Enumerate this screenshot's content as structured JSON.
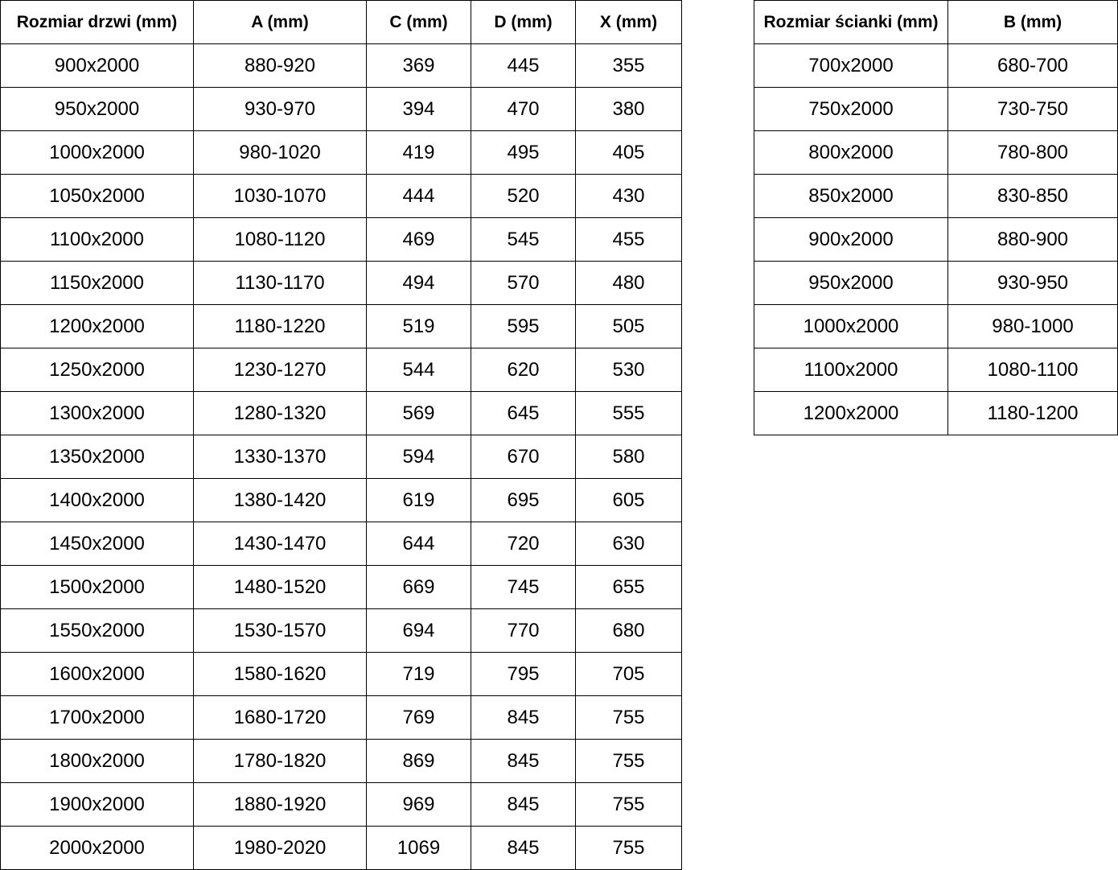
{
  "page": {
    "background": "#ffffff",
    "border_color": "#000000",
    "text_color": "#000000"
  },
  "door_table": {
    "headers": [
      "Rozmiar drzwi (mm)",
      "A (mm)",
      "C (mm)",
      "D (mm)",
      "X (mm)"
    ],
    "rows": [
      [
        "900x2000",
        "880-920",
        "369",
        "445",
        "355"
      ],
      [
        "950x2000",
        "930-970",
        "394",
        "470",
        "380"
      ],
      [
        "1000x2000",
        "980-1020",
        "419",
        "495",
        "405"
      ],
      [
        "1050x2000",
        "1030-1070",
        "444",
        "520",
        "430"
      ],
      [
        "1100x2000",
        "1080-1120",
        "469",
        "545",
        "455"
      ],
      [
        "1150x2000",
        "1130-1170",
        "494",
        "570",
        "480"
      ],
      [
        "1200x2000",
        "1180-1220",
        "519",
        "595",
        "505"
      ],
      [
        "1250x2000",
        "1230-1270",
        "544",
        "620",
        "530"
      ],
      [
        "1300x2000",
        "1280-1320",
        "569",
        "645",
        "555"
      ],
      [
        "1350x2000",
        "1330-1370",
        "594",
        "670",
        "580"
      ],
      [
        "1400x2000",
        "1380-1420",
        "619",
        "695",
        "605"
      ],
      [
        "1450x2000",
        "1430-1470",
        "644",
        "720",
        "630"
      ],
      [
        "1500x2000",
        "1480-1520",
        "669",
        "745",
        "655"
      ],
      [
        "1550x2000",
        "1530-1570",
        "694",
        "770",
        "680"
      ],
      [
        "1600x2000",
        "1580-1620",
        "719",
        "795",
        "705"
      ],
      [
        "1700x2000",
        "1680-1720",
        "769",
        "845",
        "755"
      ],
      [
        "1800x2000",
        "1780-1820",
        "869",
        "845",
        "755"
      ],
      [
        "1900x2000",
        "1880-1920",
        "969",
        "845",
        "755"
      ],
      [
        "2000x2000",
        "1980-2020",
        "1069",
        "845",
        "755"
      ]
    ]
  },
  "wall_table": {
    "headers": [
      "Rozmiar ścianki (mm)",
      "B (mm)"
    ],
    "rows": [
      [
        "700x2000",
        "680-700"
      ],
      [
        "750x2000",
        "730-750"
      ],
      [
        "800x2000",
        "780-800"
      ],
      [
        "850x2000",
        "830-850"
      ],
      [
        "900x2000",
        "880-900"
      ],
      [
        "950x2000",
        "930-950"
      ],
      [
        "1000x2000",
        "980-1000"
      ],
      [
        "1100x2000",
        "1080-1100"
      ],
      [
        "1200x2000",
        "1180-1200"
      ]
    ]
  }
}
